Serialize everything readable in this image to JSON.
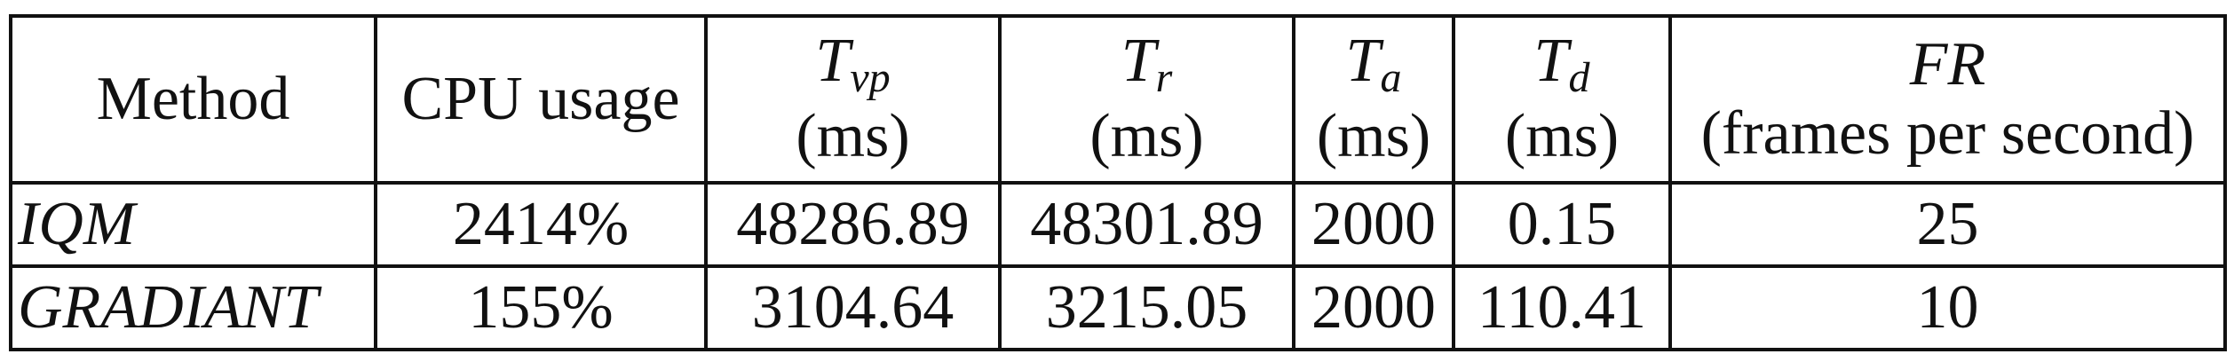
{
  "headers": {
    "method": "Method",
    "cpu": "CPU usage",
    "tvp": {
      "sym": "T",
      "sub": "vp",
      "unit": "(ms)"
    },
    "tr": {
      "sym": "T",
      "sub": "r",
      "unit": "(ms)"
    },
    "ta": {
      "sym": "T",
      "sub": "a",
      "unit": "(ms)"
    },
    "td": {
      "sym": "T",
      "sub": "d",
      "unit": "(ms)"
    },
    "fr": {
      "sym": "FR",
      "unit": "(frames per second)"
    }
  },
  "rows": [
    {
      "method": "IQM",
      "cpu": "2414%",
      "tvp": "48286.89",
      "tr": "48301.89",
      "ta": "2000",
      "td": "0.15",
      "fr": "25"
    },
    {
      "method": "GRADIANT",
      "cpu": "155%",
      "tvp": "3104.64",
      "tr": "3215.05",
      "ta": "2000",
      "td": "110.41",
      "fr": "10"
    }
  ]
}
